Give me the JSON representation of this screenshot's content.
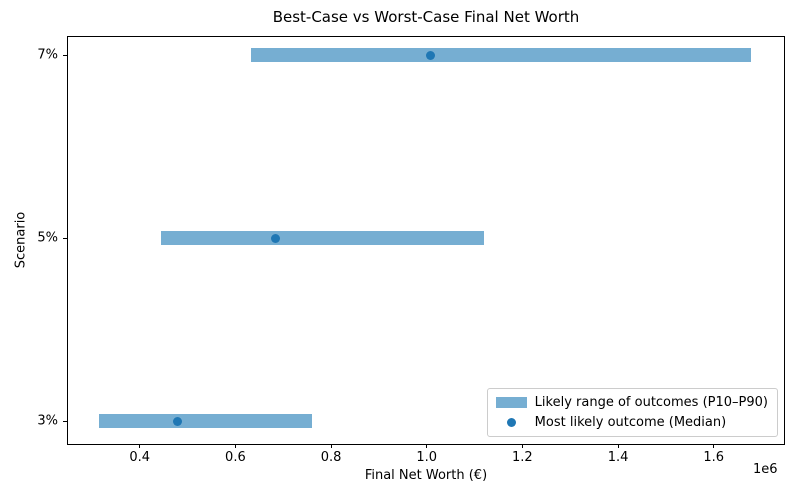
{
  "chart_data": {
    "type": "bar",
    "subtype": "horizontal_range_bars_with_median_points",
    "title": "Best-Case vs Worst-Case Final Net Worth",
    "xlabel": "Final Net Worth (€)",
    "ylabel": "Scenario",
    "x_offset_label": "1e6",
    "xlim": [
      250000,
      1747000
    ],
    "x_ticks": [
      400000,
      600000,
      800000,
      1000000,
      1200000,
      1400000,
      1600000
    ],
    "x_tick_labels": [
      "0.4",
      "0.6",
      "0.8",
      "1.0",
      "1.2",
      "1.4",
      "1.6"
    ],
    "categories_bottom_to_top": [
      "3%",
      "5%",
      "7%"
    ],
    "series": [
      {
        "scenario": "3%",
        "p10": 315000,
        "median": 478000,
        "p90": 760000
      },
      {
        "scenario": "5%",
        "p10": 444000,
        "median": 683000,
        "p90": 1119000
      },
      {
        "scenario": "7%",
        "p10": 632000,
        "median": 1008000,
        "p90": 1679000
      }
    ],
    "grid": false,
    "legend_position": "lower right",
    "colors": {
      "range_bar": "#76aed2",
      "median_dot": "#1f77b4",
      "spine": "#000000",
      "legend_border": "#cccccc"
    },
    "legend": {
      "entries": [
        {
          "label": "Likely range of outcomes (P10–P90)",
          "marker": "bar"
        },
        {
          "label": "Most likely outcome (Median)",
          "marker": "dot"
        }
      ]
    }
  }
}
